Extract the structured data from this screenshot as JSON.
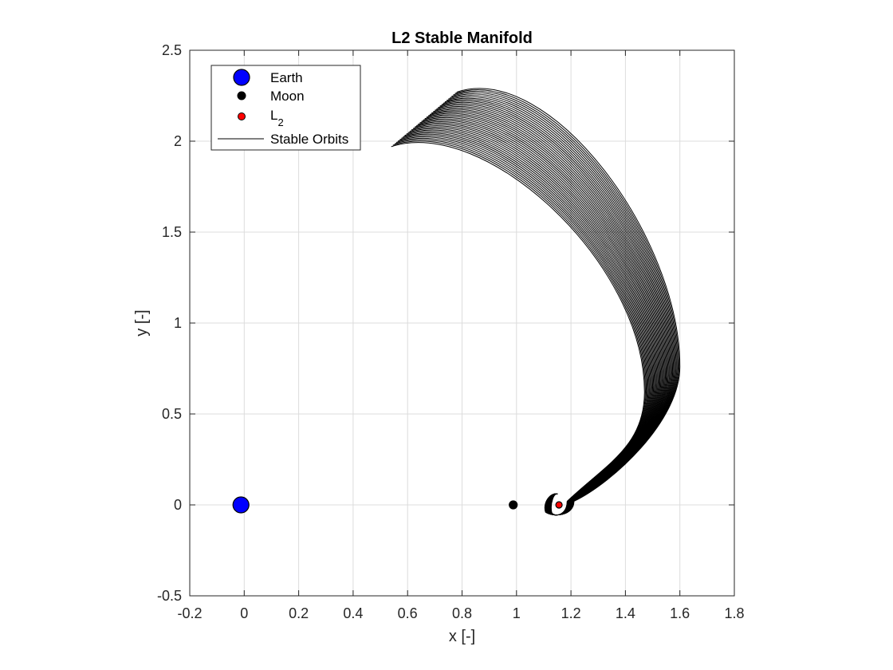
{
  "chart_data": {
    "type": "line",
    "title": "L2 Stable Manifold",
    "xlabel": "x [-]",
    "ylabel": "y [-]",
    "xlim": [
      -0.2,
      1.8
    ],
    "ylim": [
      -0.5,
      2.5
    ],
    "xticks": [
      "-0.2",
      "0",
      "0.2",
      "0.4",
      "0.6",
      "0.8",
      "1",
      "1.2",
      "1.4",
      "1.6",
      "1.8"
    ],
    "yticks": [
      "-0.5",
      "0",
      "0.5",
      "1",
      "1.5",
      "2",
      "2.5"
    ],
    "grid": true,
    "legend_position": "top-left",
    "legend": [
      {
        "label": "Earth",
        "kind": "marker",
        "color": "#0000ff",
        "size": "large"
      },
      {
        "label": "Moon",
        "kind": "marker",
        "color": "#000000",
        "size": "small"
      },
      {
        "label": "L",
        "sub": "2",
        "kind": "marker",
        "color": "#ff0000",
        "size": "small"
      },
      {
        "label": "Stable Orbits",
        "kind": "line",
        "color": "#000000"
      }
    ],
    "points": [
      {
        "name": "Earth",
        "x": -0.012,
        "y": 0.0,
        "color": "#0000ff"
      },
      {
        "name": "Moon",
        "x": 0.988,
        "y": 0.0,
        "color": "#000000"
      },
      {
        "name": "L2",
        "x": 1.156,
        "y": 0.0,
        "color": "#ff0000"
      }
    ],
    "orbits": {
      "count": 40,
      "center": [
        1.156,
        0.0
      ],
      "tail_start": {
        "x": [
          0.54,
          0.78
        ],
        "y": [
          1.97,
          2.27
        ]
      },
      "turn_point": {
        "x": [
          1.47,
          1.6
        ],
        "y": [
          0.62,
          0.76
        ]
      },
      "near_l2_loop_radius": [
        0.03,
        0.055
      ],
      "color": "#000000"
    }
  }
}
